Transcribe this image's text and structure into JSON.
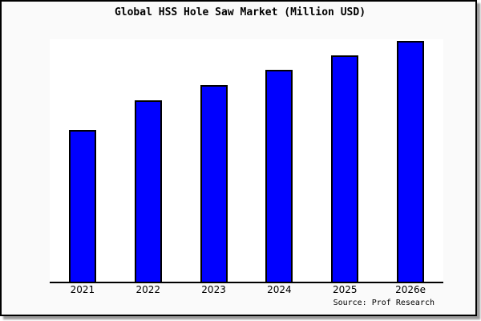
{
  "chart_data": {
    "type": "bar",
    "title": "Global HSS Hole Saw Market (Million USD)",
    "categories": [
      "2021",
      "2022",
      "2023",
      "2024",
      "2025",
      "2026e"
    ],
    "values": [
      189,
      226,
      245,
      264,
      282,
      300
    ],
    "value_note": "y-axis has no labels or gridlines; values are relative bar heights estimated in pixels from the axis baseline",
    "xlabel": "",
    "ylabel": "",
    "ylim": [
      0,
      304
    ],
    "grid": false,
    "legend_position": "none",
    "bar_color": "#0000ff",
    "bar_border_color": "#000000",
    "source_annotation": "Source: Prof Research"
  },
  "colors": {
    "page_background": "#ffffff",
    "card_background": "#fafafa",
    "plot_background": "#ffffff",
    "frame_border": "#000000",
    "axis_line": "#000000",
    "shadow": "#9a9a9a",
    "text": "#000000"
  }
}
